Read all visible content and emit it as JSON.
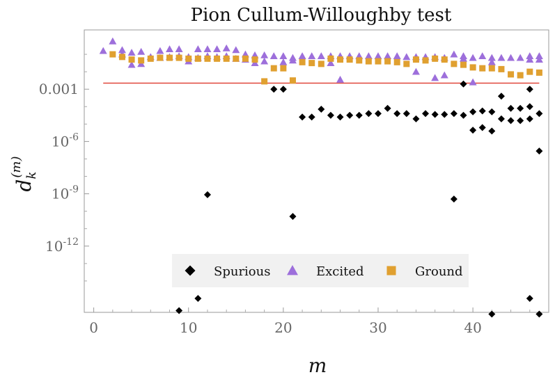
{
  "chart_data": {
    "type": "scatter",
    "title": "Pion Cullum-Willoughby test",
    "xlabel": "m",
    "ylabel_base": "d",
    "ylabel_sub": "k",
    "ylabel_sup": "(m)",
    "xlim": [
      -1,
      48
    ],
    "ylim_log10": [
      -15.8,
      0.4
    ],
    "yscale": "log",
    "x_ticks": [
      0,
      10,
      20,
      30,
      40
    ],
    "y_ticks": [
      {
        "exp": -3,
        "label": "0.001"
      },
      {
        "exp": -6,
        "label": "10",
        "sup": "-6"
      },
      {
        "exp": -9,
        "label": "10",
        "sup": "-9"
      },
      {
        "exp": -12,
        "label": "10",
        "sup": "-12"
      }
    ],
    "threshold": {
      "log10": -2.65,
      "color": "#e0473a"
    },
    "legend_placement": "bottom-center",
    "series": [
      {
        "name": "Spurious",
        "marker": "diamond",
        "color": "#000000",
        "points": [
          [
            9,
            -15.7
          ],
          [
            11,
            -15.0
          ],
          [
            12,
            -9.05
          ],
          [
            19,
            -3.0
          ],
          [
            20,
            -3.0
          ],
          [
            21,
            -10.3
          ],
          [
            22,
            -4.6
          ],
          [
            23,
            -4.6
          ],
          [
            24,
            -4.15
          ],
          [
            25,
            -4.5
          ],
          [
            26,
            -4.6
          ],
          [
            27,
            -4.5
          ],
          [
            28,
            -4.5
          ],
          [
            29,
            -4.4
          ],
          [
            30,
            -4.4
          ],
          [
            31,
            -4.1
          ],
          [
            32,
            -4.4
          ],
          [
            33,
            -4.4
          ],
          [
            34,
            -4.7
          ],
          [
            35,
            -4.4
          ],
          [
            36,
            -4.45
          ],
          [
            37,
            -4.45
          ],
          [
            38,
            -4.4
          ],
          [
            38,
            -9.3
          ],
          [
            39,
            -4.5
          ],
          [
            39,
            -2.7
          ],
          [
            40,
            -5.35
          ],
          [
            40,
            -4.3
          ],
          [
            41,
            -5.2
          ],
          [
            41,
            -4.25
          ],
          [
            42,
            -5.4
          ],
          [
            42,
            -4.3
          ],
          [
            42,
            -15.9
          ],
          [
            43,
            -4.7
          ],
          [
            43,
            -3.4
          ],
          [
            44,
            -4.8
          ],
          [
            44,
            -4.1
          ],
          [
            45,
            -4.8
          ],
          [
            45,
            -4.1
          ],
          [
            46,
            -4.7
          ],
          [
            46,
            -4.0
          ],
          [
            46,
            -3.0
          ],
          [
            46,
            -15.0
          ],
          [
            47,
            -4.4
          ],
          [
            47,
            -6.55
          ],
          [
            47,
            -15.9
          ]
        ]
      },
      {
        "name": "Excited",
        "marker": "triangle",
        "color": "#9d6fdb",
        "points": [
          [
            1,
            -0.8
          ],
          [
            2,
            -0.25
          ],
          [
            3,
            -0.75
          ],
          [
            3,
            -1.0
          ],
          [
            4,
            -0.9
          ],
          [
            4,
            -1.6
          ],
          [
            5,
            -0.85
          ],
          [
            5,
            -1.55
          ],
          [
            6,
            -1.15
          ],
          [
            7,
            -0.8
          ],
          [
            7,
            -1.2
          ],
          [
            8,
            -0.7
          ],
          [
            8,
            -1.15
          ],
          [
            9,
            -0.7
          ],
          [
            9,
            -1.1
          ],
          [
            10,
            -1.15
          ],
          [
            10,
            -1.4
          ],
          [
            11,
            -0.7
          ],
          [
            11,
            -1.2
          ],
          [
            12,
            -0.7
          ],
          [
            12,
            -1.1
          ],
          [
            13,
            -0.7
          ],
          [
            13,
            -1.15
          ],
          [
            14,
            -0.65
          ],
          [
            14,
            -1.1
          ],
          [
            15,
            -0.75
          ],
          [
            15,
            -1.25
          ],
          [
            16,
            -1.0
          ],
          [
            16,
            -1.3
          ],
          [
            17,
            -1.05
          ],
          [
            17,
            -1.5
          ],
          [
            18,
            -1.05
          ],
          [
            18,
            -1.4
          ],
          [
            19,
            -1.1
          ],
          [
            20,
            -1.1
          ],
          [
            20,
            -1.45
          ],
          [
            21,
            -1.2
          ],
          [
            21,
            -1.35
          ],
          [
            22,
            -1.1
          ],
          [
            23,
            -1.1
          ],
          [
            24,
            -1.1
          ],
          [
            25,
            -1.1
          ],
          [
            25,
            -1.5
          ],
          [
            26,
            -1.1
          ],
          [
            26,
            -2.45
          ],
          [
            27,
            -1.1
          ],
          [
            28,
            -1.1
          ],
          [
            29,
            -1.1
          ],
          [
            30,
            -1.1
          ],
          [
            31,
            -1.1
          ],
          [
            32,
            -1.1
          ],
          [
            33,
            -1.15
          ],
          [
            34,
            -1.15
          ],
          [
            34,
            -2.0
          ],
          [
            35,
            -1.15
          ],
          [
            36,
            -1.15
          ],
          [
            36,
            -2.35
          ],
          [
            37,
            -1.2
          ],
          [
            37,
            -2.2
          ],
          [
            38,
            -1.0
          ],
          [
            39,
            -1.1
          ],
          [
            39,
            -1.25
          ],
          [
            40,
            -1.2
          ],
          [
            40,
            -2.6
          ],
          [
            41,
            -1.1
          ],
          [
            42,
            -1.2
          ],
          [
            42,
            -1.45
          ],
          [
            43,
            -1.2
          ],
          [
            44,
            -1.2
          ],
          [
            45,
            -1.2
          ],
          [
            46,
            -1.1
          ],
          [
            46,
            -1.3
          ],
          [
            47,
            -1.1
          ],
          [
            47,
            -1.3
          ]
        ]
      },
      {
        "name": "Ground",
        "marker": "square",
        "color": "#e0a030",
        "points": [
          [
            2,
            -1.0
          ],
          [
            3,
            -1.15
          ],
          [
            4,
            -1.3
          ],
          [
            5,
            -1.35
          ],
          [
            6,
            -1.25
          ],
          [
            7,
            -1.2
          ],
          [
            8,
            -1.2
          ],
          [
            9,
            -1.2
          ],
          [
            10,
            -1.25
          ],
          [
            11,
            -1.25
          ],
          [
            12,
            -1.25
          ],
          [
            13,
            -1.25
          ],
          [
            14,
            -1.25
          ],
          [
            15,
            -1.25
          ],
          [
            16,
            -1.25
          ],
          [
            17,
            -1.3
          ],
          [
            18,
            -2.55
          ],
          [
            19,
            -1.8
          ],
          [
            20,
            -1.8
          ],
          [
            21,
            -2.5
          ],
          [
            22,
            -1.45
          ],
          [
            23,
            -1.5
          ],
          [
            24,
            -1.55
          ],
          [
            25,
            -1.25
          ],
          [
            26,
            -1.3
          ],
          [
            27,
            -1.3
          ],
          [
            28,
            -1.35
          ],
          [
            29,
            -1.4
          ],
          [
            30,
            -1.4
          ],
          [
            31,
            -1.4
          ],
          [
            32,
            -1.45
          ],
          [
            33,
            -1.55
          ],
          [
            34,
            -1.3
          ],
          [
            35,
            -1.35
          ],
          [
            36,
            -1.25
          ],
          [
            37,
            -1.3
          ],
          [
            38,
            -1.55
          ],
          [
            39,
            -1.6
          ],
          [
            40,
            -1.75
          ],
          [
            41,
            -1.8
          ],
          [
            42,
            -1.8
          ],
          [
            43,
            -1.85
          ],
          [
            44,
            -2.15
          ],
          [
            45,
            -2.2
          ],
          [
            46,
            -2.0
          ],
          [
            47,
            -2.05
          ]
        ]
      }
    ]
  }
}
